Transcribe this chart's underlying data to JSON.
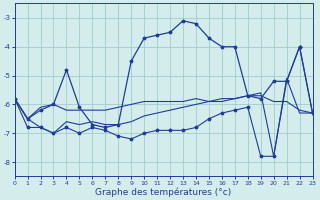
{
  "title": "Graphe des températures (°c)",
  "background_color": "#d4ecec",
  "grid_color": "#a0cccc",
  "line_color": "#1f3d99",
  "xlim": [
    0,
    23
  ],
  "ylim": [
    -8.5,
    -2.5
  ],
  "yticks": [
    -8,
    -7,
    -6,
    -5,
    -4,
    -3
  ],
  "xticks": [
    0,
    1,
    2,
    3,
    4,
    5,
    6,
    7,
    8,
    9,
    10,
    11,
    12,
    13,
    14,
    15,
    16,
    17,
    18,
    19,
    20,
    21,
    22,
    23
  ],
  "line_main_x": [
    0,
    1,
    2,
    3,
    4,
    5,
    6,
    7,
    8,
    9,
    10,
    11,
    12,
    13,
    14,
    15,
    16,
    17,
    18,
    19,
    20,
    21,
    22,
    23
  ],
  "line_main_y": [
    -5.8,
    -6.5,
    -6.2,
    -6.0,
    -4.8,
    -6.1,
    -6.7,
    -6.8,
    -6.7,
    -4.5,
    -3.7,
    -3.6,
    -3.5,
    -3.1,
    -3.2,
    -3.7,
    -4.0,
    -4.0,
    -5.7,
    -5.8,
    -5.2,
    -5.2,
    -4.0,
    -6.3
  ],
  "line_mid1_x": [
    0,
    1,
    2,
    3,
    4,
    5,
    6,
    7,
    8,
    9,
    10,
    11,
    12,
    13,
    14,
    15,
    16,
    17,
    18,
    19,
    20,
    21,
    22,
    23
  ],
  "line_mid1_y": [
    -5.8,
    -6.5,
    -6.1,
    -6.0,
    -6.2,
    -6.2,
    -6.2,
    -6.2,
    -6.1,
    -6.0,
    -5.9,
    -5.9,
    -5.9,
    -5.9,
    -5.8,
    -5.9,
    -5.9,
    -5.8,
    -5.7,
    -5.7,
    -5.9,
    -5.9,
    -6.2,
    -6.3
  ],
  "line_mid2_x": [
    0,
    1,
    2,
    3,
    4,
    5,
    6,
    7,
    8,
    9,
    10,
    11,
    12,
    13,
    14,
    15,
    16,
    17,
    18,
    19,
    20,
    21,
    22,
    23
  ],
  "line_mid2_y": [
    -5.8,
    -6.5,
    -6.8,
    -7.0,
    -6.6,
    -6.7,
    -6.6,
    -6.7,
    -6.7,
    -6.6,
    -6.4,
    -6.3,
    -6.2,
    -6.1,
    -6.0,
    -5.9,
    -5.8,
    -5.8,
    -5.7,
    -5.6,
    -7.8,
    -5.1,
    -6.3,
    -6.3
  ],
  "line_bot_x": [
    0,
    1,
    2,
    3,
    4,
    5,
    6,
    7,
    8,
    9,
    10,
    11,
    12,
    13,
    14,
    15,
    16,
    17,
    18,
    19,
    20,
    21,
    22,
    23
  ],
  "line_bot_y": [
    -5.8,
    -6.8,
    -6.8,
    -7.0,
    -6.8,
    -7.0,
    -6.8,
    -6.9,
    -7.1,
    -7.2,
    -7.0,
    -6.9,
    -6.9,
    -6.9,
    -6.8,
    -6.5,
    -6.3,
    -6.2,
    -6.1,
    -7.8,
    -7.8,
    -5.2,
    -4.0,
    -6.3
  ]
}
